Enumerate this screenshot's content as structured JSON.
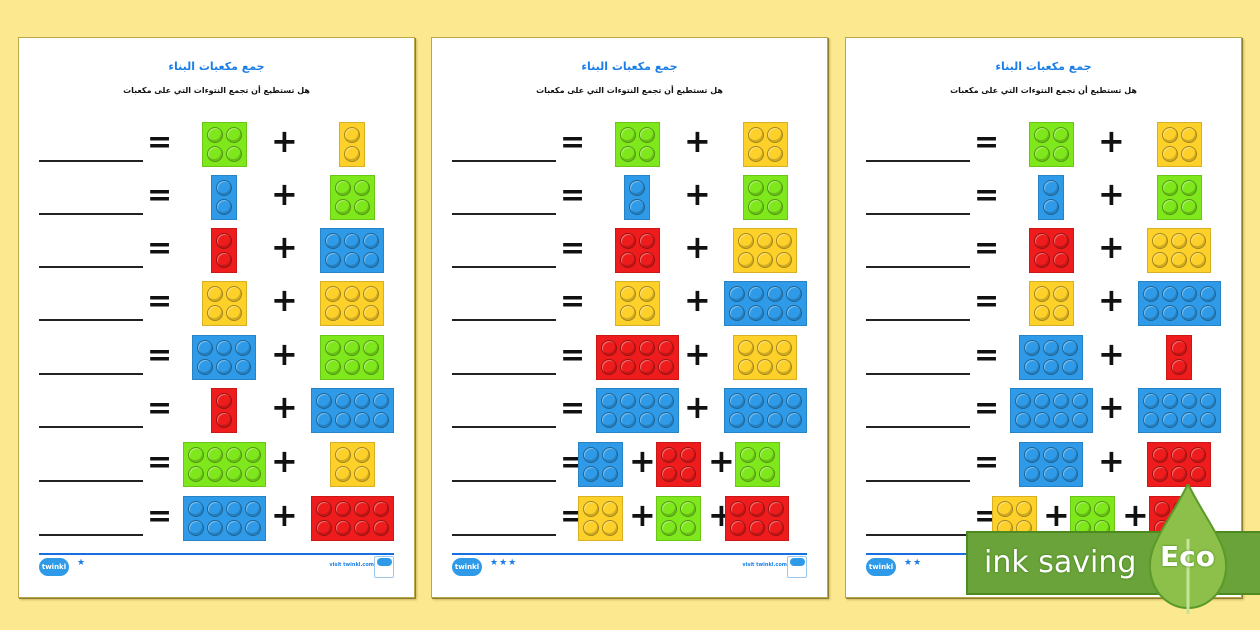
{
  "colors": {
    "background": "#fce98f",
    "title_blue": "#1a7ee6",
    "green": "#7ee81c",
    "yellow": "#fdd02a",
    "blue": "#2f9be8",
    "red": "#ee1c1c",
    "eco_green": "#6aa33a"
  },
  "sheets": [
    {
      "title": "جمع مكعبات البناء",
      "subtitle": "هل تستطيع أن تجمع النتوءات التي على مكعبات",
      "stars": "★",
      "footer_logo": "twinkl",
      "footer_link": "visit twinkl.com",
      "rows": [
        {
          "operator": "=",
          "bricks": [
            {
              "color": "green",
              "cols": 2
            },
            {
              "color": "yellow",
              "cols": 1
            }
          ]
        },
        {
          "operator": "=",
          "bricks": [
            {
              "color": "blue",
              "cols": 1
            },
            {
              "color": "green",
              "cols": 2
            }
          ]
        },
        {
          "operator": "=",
          "bricks": [
            {
              "color": "red",
              "cols": 1
            },
            {
              "color": "blue",
              "cols": 3
            }
          ]
        },
        {
          "operator": "=",
          "bricks": [
            {
              "color": "yellow",
              "cols": 2
            },
            {
              "color": "yellow",
              "cols": 3
            }
          ]
        },
        {
          "operator": "=",
          "bricks": [
            {
              "color": "blue",
              "cols": 3
            },
            {
              "color": "green",
              "cols": 3
            }
          ]
        },
        {
          "operator": "=",
          "bricks": [
            {
              "color": "red",
              "cols": 1
            },
            {
              "color": "blue",
              "cols": 4
            }
          ]
        },
        {
          "operator": "=",
          "bricks": [
            {
              "color": "green",
              "cols": 4
            },
            {
              "color": "yellow",
              "cols": 2
            }
          ]
        },
        {
          "operator": "=",
          "bricks": [
            {
              "color": "blue",
              "cols": 4
            },
            {
              "color": "red",
              "cols": 4
            }
          ]
        }
      ]
    },
    {
      "title": "جمع مكعبات البناء",
      "subtitle": "هل تستطيع أن تجمع النتوءات التي على مكعبات",
      "stars": "★★★",
      "footer_logo": "twinkl",
      "footer_link": "visit twinkl.com",
      "rows": [
        {
          "operator": "=",
          "bricks": [
            {
              "color": "green",
              "cols": 2
            },
            {
              "color": "yellow",
              "cols": 2
            }
          ]
        },
        {
          "operator": "=",
          "bricks": [
            {
              "color": "blue",
              "cols": 1
            },
            {
              "color": "green",
              "cols": 2
            }
          ]
        },
        {
          "operator": "=",
          "bricks": [
            {
              "color": "red",
              "cols": 2
            },
            {
              "color": "yellow",
              "cols": 3
            }
          ]
        },
        {
          "operator": "=",
          "bricks": [
            {
              "color": "yellow",
              "cols": 2
            },
            {
              "color": "blue",
              "cols": 4
            }
          ]
        },
        {
          "operator": "=",
          "bricks": [
            {
              "color": "red",
              "cols": 4
            },
            {
              "color": "yellow",
              "cols": 3
            }
          ]
        },
        {
          "operator": "=",
          "bricks": [
            {
              "color": "blue",
              "cols": 4
            },
            {
              "color": "blue",
              "cols": 4
            }
          ]
        },
        {
          "operator": "=",
          "bricks": [
            {
              "color": "blue",
              "cols": 2
            },
            {
              "color": "red",
              "cols": 2
            },
            {
              "color": "green",
              "cols": 2
            }
          ]
        },
        {
          "operator": "=",
          "bricks": [
            {
              "color": "yellow",
              "cols": 2
            },
            {
              "color": "green",
              "cols": 2
            },
            {
              "color": "red",
              "cols": 3
            }
          ]
        }
      ]
    },
    {
      "title": "جمع مكعبات البناء",
      "subtitle": "هل تستطيع أن تجمع النتوءات التي على مكعبات",
      "stars": "★★",
      "footer_logo": "twinkl",
      "footer_link": "",
      "rows": [
        {
          "operator": "=",
          "bricks": [
            {
              "color": "green",
              "cols": 2
            },
            {
              "color": "yellow",
              "cols": 2
            }
          ]
        },
        {
          "operator": "=",
          "bricks": [
            {
              "color": "blue",
              "cols": 1
            },
            {
              "color": "green",
              "cols": 2
            }
          ]
        },
        {
          "operator": "=",
          "bricks": [
            {
              "color": "red",
              "cols": 2
            },
            {
              "color": "yellow",
              "cols": 3
            }
          ]
        },
        {
          "operator": "=",
          "bricks": [
            {
              "color": "yellow",
              "cols": 2
            },
            {
              "color": "blue",
              "cols": 4
            }
          ]
        },
        {
          "operator": "=",
          "bricks": [
            {
              "color": "blue",
              "cols": 3
            },
            {
              "color": "red",
              "cols": 1
            }
          ]
        },
        {
          "operator": "=",
          "bricks": [
            {
              "color": "blue",
              "cols": 4
            },
            {
              "color": "blue",
              "cols": 4
            }
          ]
        },
        {
          "operator": "=",
          "bricks": [
            {
              "color": "blue",
              "cols": 3
            },
            {
              "color": "red",
              "cols": 3
            }
          ]
        },
        {
          "operator": "=",
          "bricks": [
            {
              "color": "yellow",
              "cols": 2
            },
            {
              "color": "green",
              "cols": 2
            },
            {
              "color": "red",
              "cols": 2
            }
          ]
        }
      ]
    }
  ],
  "eco_banner": {
    "text": "ink saving",
    "badge": "Eco"
  }
}
